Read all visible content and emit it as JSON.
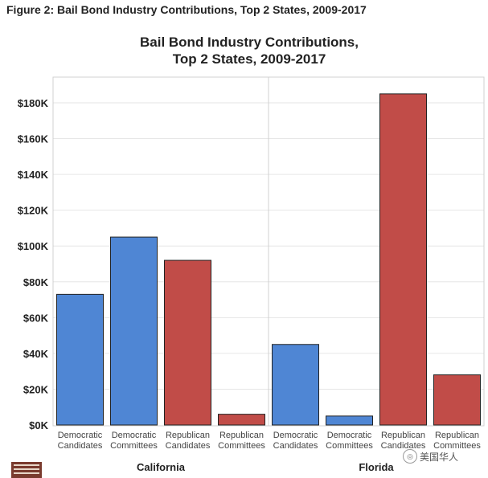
{
  "figure_caption": "Figure 2: Bail Bond Industry Contributions, Top 2 States, 2009-2017",
  "watermark_text": "美国华人",
  "colors": {
    "democratic": "#4f86d4",
    "republican": "#c14c48",
    "grid": "#e6e6e6",
    "border": "#d0d0d0"
  },
  "chart_data": {
    "type": "bar",
    "title_lines": [
      "Bail Bond Industry Contributions,",
      "Top 2 States, 2009-2017"
    ],
    "xlabel": "",
    "ylabel": "",
    "ylim": [
      0,
      195000
    ],
    "y_ticks": [
      0,
      20000,
      40000,
      60000,
      80000,
      100000,
      120000,
      140000,
      160000,
      180000
    ],
    "y_tick_labels": [
      "$0K",
      "$20K",
      "$40K",
      "$60K",
      "$80K",
      "$100K",
      "$120K",
      "$140K",
      "$160K",
      "$180K"
    ],
    "grid": true,
    "groups": [
      {
        "name": "California",
        "bars": [
          {
            "label": [
              "Democratic",
              "Candidates"
            ],
            "party": "democratic",
            "value": 73000
          },
          {
            "label": [
              "Democratic",
              "Committees"
            ],
            "party": "democratic",
            "value": 105000
          },
          {
            "label": [
              "Republican",
              "Candidates"
            ],
            "party": "republican",
            "value": 92000
          },
          {
            "label": [
              "Republican",
              "Committees"
            ],
            "party": "republican",
            "value": 6000
          }
        ]
      },
      {
        "name": "Florida",
        "bars": [
          {
            "label": [
              "Democratic",
              "Candidates"
            ],
            "party": "democratic",
            "value": 45000
          },
          {
            "label": [
              "Democratic",
              "Committees"
            ],
            "party": "democratic",
            "value": 5000
          },
          {
            "label": [
              "Republican",
              "Candidates"
            ],
            "party": "republican",
            "value": 185000
          },
          {
            "label": [
              "Republican",
              "Committees"
            ],
            "party": "republican",
            "value": 28000
          }
        ]
      }
    ]
  }
}
